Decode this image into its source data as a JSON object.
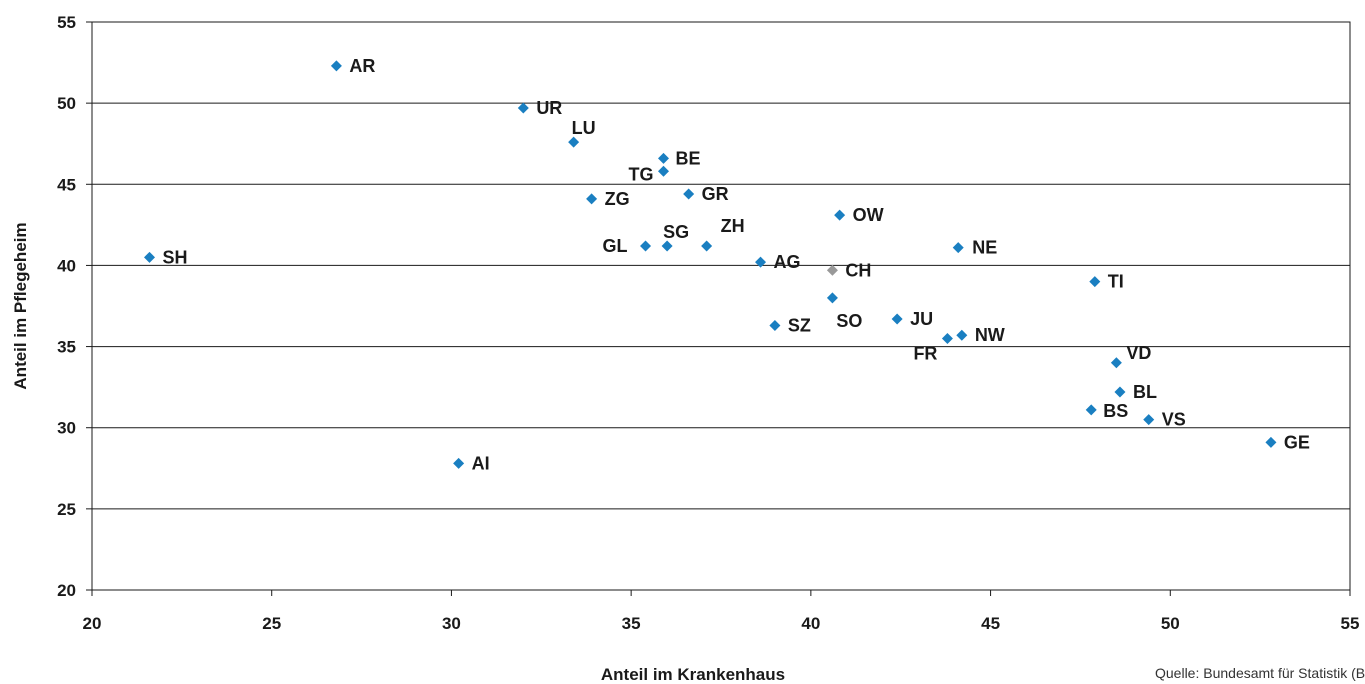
{
  "chart_data": {
    "type": "scatter",
    "title": "",
    "xlabel": "Anteil im Krankenhaus",
    "ylabel": "Anteil im Pflegeheim",
    "xlim": [
      20,
      55
    ],
    "ylim": [
      20,
      55
    ],
    "xticks": [
      20,
      25,
      30,
      35,
      40,
      45,
      50,
      55
    ],
    "yticks": [
      20,
      25,
      30,
      35,
      40,
      45,
      50,
      55
    ],
    "grid": "horizontal",
    "point_color": "#1a7fc1",
    "highlight_color": "#999999",
    "points": [
      {
        "label": "AR",
        "x": 26.8,
        "y": 52.3
      },
      {
        "label": "UR",
        "x": 32.0,
        "y": 49.7
      },
      {
        "label": "LU",
        "x": 33.4,
        "y": 47.6
      },
      {
        "label": "BE",
        "x": 35.9,
        "y": 46.6
      },
      {
        "label": "TG",
        "x": 35.9,
        "y": 45.8
      },
      {
        "label": "GR",
        "x": 36.6,
        "y": 44.4
      },
      {
        "label": "ZG",
        "x": 33.9,
        "y": 44.1
      },
      {
        "label": "OW",
        "x": 40.8,
        "y": 43.1
      },
      {
        "label": "GL",
        "x": 35.4,
        "y": 41.2
      },
      {
        "label": "SG",
        "x": 36.0,
        "y": 41.2
      },
      {
        "label": "ZH",
        "x": 37.1,
        "y": 41.2
      },
      {
        "label": "NE",
        "x": 44.1,
        "y": 41.1
      },
      {
        "label": "SH",
        "x": 21.6,
        "y": 40.5
      },
      {
        "label": "AG",
        "x": 38.6,
        "y": 40.2
      },
      {
        "label": "CH",
        "x": 40.6,
        "y": 39.7,
        "highlight": true
      },
      {
        "label": "TI",
        "x": 47.9,
        "y": 39.0
      },
      {
        "label": "SO",
        "x": 40.6,
        "y": 38.0
      },
      {
        "label": "JU",
        "x": 42.4,
        "y": 36.7
      },
      {
        "label": "SZ",
        "x": 39.0,
        "y": 36.3
      },
      {
        "label": "NW",
        "x": 44.2,
        "y": 35.7
      },
      {
        "label": "FR",
        "x": 43.8,
        "y": 35.5
      },
      {
        "label": "VD",
        "x": 48.5,
        "y": 34.0
      },
      {
        "label": "BL",
        "x": 48.6,
        "y": 32.2
      },
      {
        "label": "BS",
        "x": 47.8,
        "y": 31.1
      },
      {
        "label": "VS",
        "x": 49.4,
        "y": 30.5
      },
      {
        "label": "GE",
        "x": 52.8,
        "y": 29.1
      },
      {
        "label": "AI",
        "x": 30.2,
        "y": 27.8
      }
    ]
  },
  "source_note": "Quelle: Bundesamt für Statistik (BFS"
}
